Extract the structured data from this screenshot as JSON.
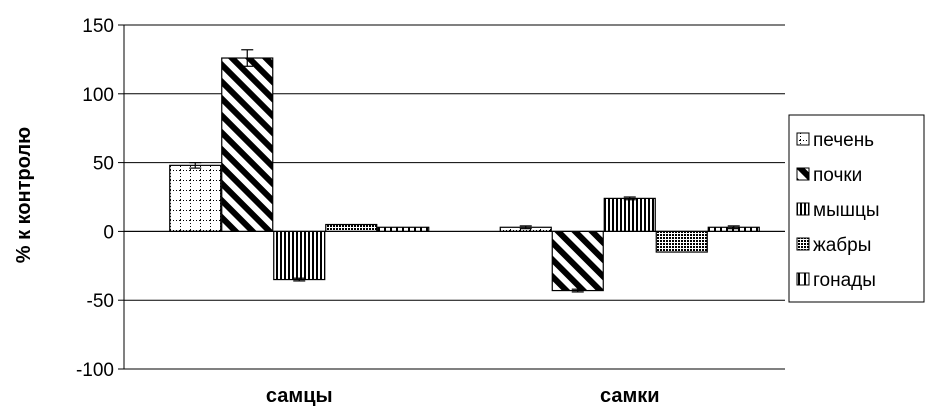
{
  "chart_data": {
    "type": "bar",
    "categories": [
      "самцы",
      "самки"
    ],
    "ylabel": "% к контролю",
    "ylim": [
      -100,
      150
    ],
    "yticks": [
      150,
      100,
      50,
      0,
      -50,
      -100
    ],
    "grid": true,
    "legend_position": "right",
    "series": [
      {
        "name": "печень",
        "pattern": "dotted-grid",
        "values": [
          48,
          3
        ],
        "errors": [
          2,
          1
        ]
      },
      {
        "name": "почки",
        "pattern": "diagonal-hatch",
        "values": [
          126,
          -43
        ],
        "errors": [
          6,
          1
        ]
      },
      {
        "name": "мышцы",
        "pattern": "vertical-lines",
        "values": [
          -35,
          24
        ],
        "errors": [
          1,
          1
        ]
      },
      {
        "name": "жабры",
        "pattern": "dense-dots",
        "values": [
          5,
          -15
        ],
        "errors": [
          0,
          0
        ]
      },
      {
        "name": "гонады",
        "pattern": "vertical-lines-sparse",
        "values": [
          3,
          3
        ],
        "errors": [
          0,
          1
        ]
      }
    ]
  }
}
